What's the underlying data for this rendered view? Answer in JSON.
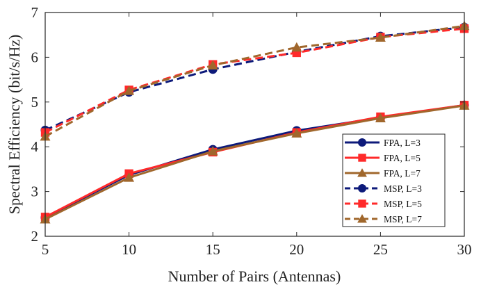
{
  "chart_data": {
    "type": "line",
    "title": "",
    "xlabel": "Number of Pairs (Antennas)",
    "ylabel": "Spectral Efficiency (bit/s/Hz)",
    "x": [
      5,
      10,
      15,
      20,
      25,
      30
    ],
    "xlim": [
      5,
      30
    ],
    "ylim": [
      2,
      7
    ],
    "xticks": [
      5,
      10,
      15,
      20,
      25,
      30
    ],
    "yticks": [
      2,
      3,
      4,
      5,
      6,
      7
    ],
    "grid": false,
    "legend_position": "bottom-right",
    "series": [
      {
        "name": "FPA, L=3",
        "values": [
          2.42,
          3.37,
          3.94,
          4.36,
          4.65,
          4.93
        ],
        "color": "#0d1a7a",
        "dash": "solid",
        "marker": "circle"
      },
      {
        "name": "FPA, L=5",
        "values": [
          2.43,
          3.4,
          3.88,
          4.32,
          4.67,
          4.93
        ],
        "color": "#ff2a2a",
        "dash": "solid",
        "marker": "square"
      },
      {
        "name": "FPA, L=7",
        "values": [
          2.38,
          3.31,
          3.9,
          4.3,
          4.64,
          4.92
        ],
        "color": "#a0672c",
        "dash": "solid",
        "marker": "triangle"
      },
      {
        "name": "MSP, L=3",
        "values": [
          4.37,
          5.22,
          5.73,
          6.12,
          6.47,
          6.67
        ],
        "color": "#0d1a7a",
        "dash": "dashed",
        "marker": "circle"
      },
      {
        "name": "MSP, L=5",
        "values": [
          4.32,
          5.27,
          5.84,
          6.1,
          6.45,
          6.64
        ],
        "color": "#ff2a2a",
        "dash": "dashed",
        "marker": "square"
      },
      {
        "name": "MSP, L=7",
        "values": [
          4.23,
          5.25,
          5.82,
          6.22,
          6.44,
          6.7
        ],
        "color": "#a0672c",
        "dash": "dashed",
        "marker": "triangle"
      }
    ]
  }
}
